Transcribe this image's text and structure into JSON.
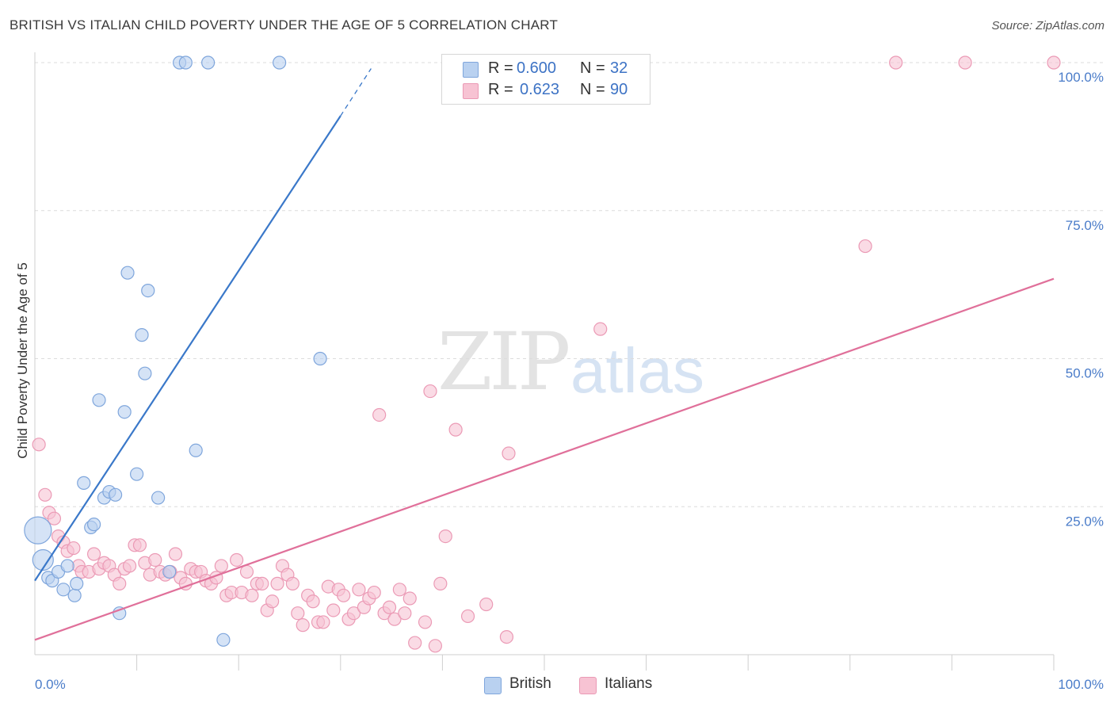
{
  "title": "BRITISH VS ITALIAN CHILD POVERTY UNDER THE AGE OF 5 CORRELATION CHART",
  "source": "Source: ZipAtlas.com",
  "watermark": {
    "zip": "ZIP",
    "atlas": "atlas"
  },
  "legend": {
    "british": {
      "r_label": "R =",
      "r_value": "0.600",
      "n_label": "N =",
      "n_value": "32"
    },
    "italians": {
      "r_label": "R =",
      "r_value": "0.623",
      "n_label": "N =",
      "n_value": "90"
    }
  },
  "bottom_legend": {
    "british": "British",
    "italians": "Italians"
  },
  "colors": {
    "british_fill": "#b9d1f0",
    "british_stroke": "#7fa6dc",
    "british_line": "#3a78c9",
    "italians_fill": "#f7c3d3",
    "italians_stroke": "#eb9ab5",
    "italians_line": "#e0709a",
    "tick_color": "#4a7cc9",
    "grid": "#dcdcdc"
  },
  "chart_data": {
    "type": "scatter",
    "title": "BRITISH VS ITALIAN CHILD POVERTY UNDER THE AGE OF 5 CORRELATION CHART",
    "xlabel": "",
    "ylabel": "Child Poverty Under the Age of 5",
    "xlim": [
      0,
      100
    ],
    "ylim": [
      0,
      100
    ],
    "x_tick_labels": [
      "0.0%",
      "100.0%"
    ],
    "y_ticks": [
      25,
      50,
      75,
      100
    ],
    "y_tick_labels": [
      "25.0%",
      "50.0%",
      "75.0%",
      "100.0%"
    ],
    "series": [
      {
        "name": "British",
        "r": 0.6,
        "n": 32,
        "trend": {
          "x0": 0,
          "y0": 12.5,
          "x1": 30,
          "y1": 91,
          "dash_x1": 33,
          "dash_y1": 99
        },
        "points": [
          {
            "x": 0.3,
            "y": 21,
            "big": 2
          },
          {
            "x": 0.8,
            "y": 16,
            "big": 1
          },
          {
            "x": 1.3,
            "y": 13
          },
          {
            "x": 1.7,
            "y": 12.5
          },
          {
            "x": 2.3,
            "y": 14
          },
          {
            "x": 2.8,
            "y": 11
          },
          {
            "x": 3.2,
            "y": 15
          },
          {
            "x": 3.9,
            "y": 10
          },
          {
            "x": 4.1,
            "y": 12
          },
          {
            "x": 4.8,
            "y": 29
          },
          {
            "x": 5.5,
            "y": 21.5
          },
          {
            "x": 5.8,
            "y": 22
          },
          {
            "x": 6.3,
            "y": 43
          },
          {
            "x": 6.8,
            "y": 26.5
          },
          {
            "x": 7.3,
            "y": 27.5
          },
          {
            "x": 7.9,
            "y": 27
          },
          {
            "x": 8.3,
            "y": 7
          },
          {
            "x": 8.8,
            "y": 41
          },
          {
            "x": 9.1,
            "y": 64.5
          },
          {
            "x": 10.0,
            "y": 30.5
          },
          {
            "x": 10.5,
            "y": 54
          },
          {
            "x": 10.8,
            "y": 47.5
          },
          {
            "x": 11.1,
            "y": 61.5
          },
          {
            "x": 12.1,
            "y": 26.5
          },
          {
            "x": 13.2,
            "y": 14
          },
          {
            "x": 14.2,
            "y": 100
          },
          {
            "x": 14.8,
            "y": 100
          },
          {
            "x": 15.8,
            "y": 34.5
          },
          {
            "x": 17.0,
            "y": 100
          },
          {
            "x": 18.5,
            "y": 2.5
          },
          {
            "x": 24.0,
            "y": 100
          },
          {
            "x": 28.0,
            "y": 50
          }
        ]
      },
      {
        "name": "Italians",
        "r": 0.623,
        "n": 90,
        "trend": {
          "x0": 0,
          "y0": 2.5,
          "x1": 100,
          "y1": 63.5
        },
        "points": [
          {
            "x": 0.4,
            "y": 35.5
          },
          {
            "x": 1.0,
            "y": 27
          },
          {
            "x": 1.4,
            "y": 24
          },
          {
            "x": 1.9,
            "y": 23
          },
          {
            "x": 2.3,
            "y": 20
          },
          {
            "x": 2.8,
            "y": 19
          },
          {
            "x": 3.2,
            "y": 17.5
          },
          {
            "x": 3.8,
            "y": 18
          },
          {
            "x": 4.3,
            "y": 15
          },
          {
            "x": 4.6,
            "y": 14
          },
          {
            "x": 5.3,
            "y": 14
          },
          {
            "x": 5.8,
            "y": 17
          },
          {
            "x": 6.3,
            "y": 14.5
          },
          {
            "x": 6.8,
            "y": 15.5
          },
          {
            "x": 7.3,
            "y": 15
          },
          {
            "x": 7.8,
            "y": 13.5
          },
          {
            "x": 8.3,
            "y": 12
          },
          {
            "x": 8.8,
            "y": 14.5
          },
          {
            "x": 9.3,
            "y": 15
          },
          {
            "x": 9.8,
            "y": 18.5
          },
          {
            "x": 10.3,
            "y": 18.5
          },
          {
            "x": 10.8,
            "y": 15.5
          },
          {
            "x": 11.3,
            "y": 13.5
          },
          {
            "x": 11.8,
            "y": 16
          },
          {
            "x": 12.3,
            "y": 14
          },
          {
            "x": 12.8,
            "y": 13.5
          },
          {
            "x": 13.3,
            "y": 14
          },
          {
            "x": 13.8,
            "y": 17
          },
          {
            "x": 14.3,
            "y": 13
          },
          {
            "x": 14.8,
            "y": 12
          },
          {
            "x": 15.3,
            "y": 14.5
          },
          {
            "x": 15.8,
            "y": 14
          },
          {
            "x": 16.3,
            "y": 14
          },
          {
            "x": 16.8,
            "y": 12.5
          },
          {
            "x": 17.3,
            "y": 12
          },
          {
            "x": 17.8,
            "y": 13
          },
          {
            "x": 18.3,
            "y": 15
          },
          {
            "x": 18.8,
            "y": 10
          },
          {
            "x": 19.3,
            "y": 10.5
          },
          {
            "x": 19.8,
            "y": 16
          },
          {
            "x": 20.3,
            "y": 10.5
          },
          {
            "x": 20.8,
            "y": 14
          },
          {
            "x": 21.3,
            "y": 10
          },
          {
            "x": 21.8,
            "y": 12
          },
          {
            "x": 22.3,
            "y": 12
          },
          {
            "x": 22.8,
            "y": 7.5
          },
          {
            "x": 23.3,
            "y": 9
          },
          {
            "x": 23.8,
            "y": 12
          },
          {
            "x": 24.3,
            "y": 15
          },
          {
            "x": 24.8,
            "y": 13.5
          },
          {
            "x": 25.3,
            "y": 12
          },
          {
            "x": 25.8,
            "y": 7
          },
          {
            "x": 26.3,
            "y": 5
          },
          {
            "x": 26.8,
            "y": 10
          },
          {
            "x": 27.3,
            "y": 9
          },
          {
            "x": 27.8,
            "y": 5.5
          },
          {
            "x": 28.3,
            "y": 5.5
          },
          {
            "x": 28.8,
            "y": 11.5
          },
          {
            "x": 29.3,
            "y": 7.5
          },
          {
            "x": 29.8,
            "y": 11
          },
          {
            "x": 30.3,
            "y": 10
          },
          {
            "x": 30.8,
            "y": 6
          },
          {
            "x": 31.3,
            "y": 7
          },
          {
            "x": 31.8,
            "y": 11
          },
          {
            "x": 32.3,
            "y": 8
          },
          {
            "x": 32.8,
            "y": 9.5
          },
          {
            "x": 33.3,
            "y": 10.5
          },
          {
            "x": 33.8,
            "y": 40.5
          },
          {
            "x": 34.3,
            "y": 7
          },
          {
            "x": 34.8,
            "y": 8
          },
          {
            "x": 35.3,
            "y": 6
          },
          {
            "x": 35.8,
            "y": 11
          },
          {
            "x": 36.3,
            "y": 7
          },
          {
            "x": 36.8,
            "y": 9.5
          },
          {
            "x": 37.3,
            "y": 2
          },
          {
            "x": 38.3,
            "y": 5.5
          },
          {
            "x": 38.8,
            "y": 44.5
          },
          {
            "x": 39.3,
            "y": 1.5
          },
          {
            "x": 39.8,
            "y": 12
          },
          {
            "x": 40.3,
            "y": 20
          },
          {
            "x": 41.3,
            "y": 38
          },
          {
            "x": 42.5,
            "y": 6.5
          },
          {
            "x": 44.3,
            "y": 8.5
          },
          {
            "x": 46.3,
            "y": 3
          },
          {
            "x": 46.5,
            "y": 34
          },
          {
            "x": 55.5,
            "y": 55
          },
          {
            "x": 81.5,
            "y": 69
          },
          {
            "x": 84.5,
            "y": 100
          },
          {
            "x": 91.3,
            "y": 100
          },
          {
            "x": 100,
            "y": 100
          }
        ]
      }
    ]
  }
}
